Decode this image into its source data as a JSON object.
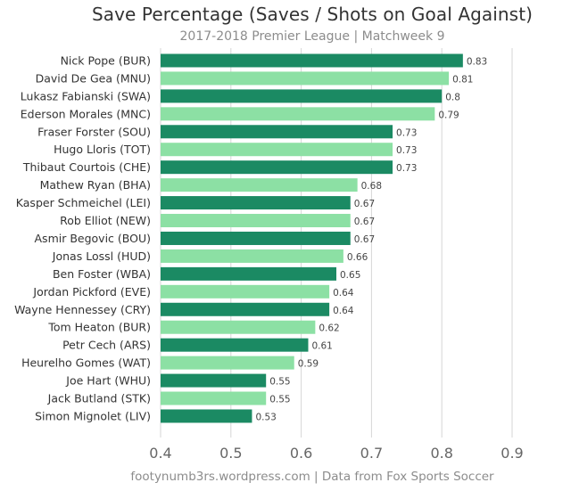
{
  "chart_data": {
    "type": "bar",
    "orientation": "horizontal",
    "title": "Save Percentage (Saves / Shots on Goal Against)",
    "subtitle": "2017-2018 Premier League | Matchweek 9",
    "caption": "footynumb3rs.wordpress.com | Data from Fox Sports Soccer",
    "categories": [
      "Nick Pope (BUR)",
      "David De Gea (MNU)",
      "Lukasz Fabianski (SWA)",
      "Ederson Morales (MNC)",
      "Fraser Forster (SOU)",
      "Hugo Lloris (TOT)",
      "Thibaut Courtois (CHE)",
      "Mathew Ryan (BHA)",
      "Kasper Schmeichel (LEI)",
      "Rob Elliot (NEW)",
      "Asmir Begovic (BOU)",
      "Jonas Lossl (HUD)",
      "Ben Foster (WBA)",
      "Jordan Pickford (EVE)",
      "Wayne Hennessey (CRY)",
      "Tom Heaton (BUR)",
      "Petr Cech (ARS)",
      "Heurelho Gomes (WAT)",
      "Joe Hart (WHU)",
      "Jack Butland (STK)",
      "Simon Mignolet (LIV)"
    ],
    "values": [
      0.83,
      0.81,
      0.8,
      0.79,
      0.73,
      0.73,
      0.73,
      0.68,
      0.67,
      0.67,
      0.67,
      0.66,
      0.65,
      0.64,
      0.64,
      0.62,
      0.61,
      0.59,
      0.55,
      0.55,
      0.53
    ],
    "data_labels": [
      "0.83",
      "0.81",
      "0.8",
      "0.79",
      "0.73",
      "0.73",
      "0.73",
      "0.68",
      "0.67",
      "0.67",
      "0.67",
      "0.66",
      "0.65",
      "0.64",
      "0.64",
      "0.62",
      "0.61",
      "0.59",
      "0.55",
      "0.55",
      "0.53"
    ],
    "xlim": [
      0.4,
      0.9
    ],
    "xticks": [
      0.4,
      0.5,
      0.6,
      0.7,
      0.8,
      0.9
    ],
    "xtick_labels": [
      "0.4",
      "0.5",
      "0.6",
      "0.7",
      "0.8",
      "0.9"
    ],
    "xlabel": "",
    "ylabel": "",
    "grid": "vertical",
    "legend": "none",
    "colors": {
      "dark": "#1b8a63",
      "light": "#8ce0a4",
      "grid": "#d6d6d6"
    },
    "bar_colors": [
      "dark",
      "light",
      "dark",
      "light",
      "dark",
      "light",
      "dark",
      "light",
      "dark",
      "light",
      "dark",
      "light",
      "dark",
      "light",
      "dark",
      "light",
      "dark",
      "light",
      "dark",
      "light",
      "dark"
    ]
  }
}
